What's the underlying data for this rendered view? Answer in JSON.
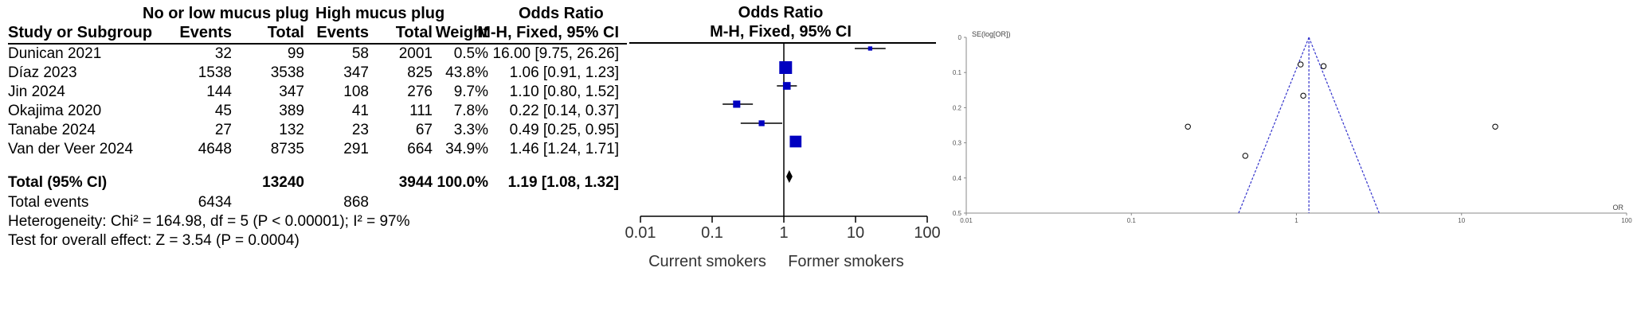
{
  "table": {
    "group1_header": "No or low mucus plug",
    "group2_header": "High mucus plug",
    "or_header": "Odds Ratio",
    "columns": [
      "Study or Subgroup",
      "Events",
      "Total",
      "Events",
      "Total",
      "Weight",
      "M-H, Fixed, 95% CI"
    ],
    "rows": [
      {
        "study": "Dunican 2021",
        "e1": "32",
        "t1": "99",
        "e2": "58",
        "t2": "2001",
        "weight": "0.5%",
        "ci": "16.00 [9.75, 26.26]"
      },
      {
        "study": "Díaz 2023",
        "e1": "1538",
        "t1": "3538",
        "e2": "347",
        "t2": "825",
        "weight": "43.8%",
        "ci": "1.06 [0.91, 1.23]"
      },
      {
        "study": "Jin 2024",
        "e1": "144",
        "t1": "347",
        "e2": "108",
        "t2": "276",
        "weight": "9.7%",
        "ci": "1.10 [0.80, 1.52]"
      },
      {
        "study": "Okajima 2020",
        "e1": "45",
        "t1": "389",
        "e2": "41",
        "t2": "111",
        "weight": "7.8%",
        "ci": "0.22 [0.14, 0.37]"
      },
      {
        "study": "Tanabe 2024",
        "e1": "27",
        "t1": "132",
        "e2": "23",
        "t2": "67",
        "weight": "3.3%",
        "ci": "0.49 [0.25, 0.95]"
      },
      {
        "study": "Van der Veer 2024",
        "e1": "4648",
        "t1": "8735",
        "e2": "291",
        "t2": "664",
        "weight": "34.9%",
        "ci": "1.46 [1.24, 1.71]"
      }
    ],
    "total": {
      "label": "Total (95% CI)",
      "t1": "13240",
      "t2": "3944",
      "weight": "100.0%",
      "ci": "1.19 [1.08, 1.32]"
    },
    "events": {
      "label": "Total events",
      "e1": "6434",
      "e2": "868"
    },
    "heterogeneity": "Heterogeneity: Chi² = 164.98, df = 5 (P < 0.00001); I² = 97%",
    "overall": "Test for overall effect: Z = 3.54 (P = 0.0004)"
  },
  "chart_data": [
    {
      "type": "forest",
      "title": "Odds Ratio",
      "subtitle": "M-H, Fixed, 95% CI",
      "scale": "log",
      "xlim": [
        0.01,
        100
      ],
      "ticks": [
        0.01,
        0.1,
        1,
        10,
        100
      ],
      "tick_labels": [
        "0.01",
        "0.1",
        "1",
        "10",
        "100"
      ],
      "favours_left": "Current smokers",
      "favours_right": "Former smokers",
      "marker_color": "#0000c0",
      "studies": [
        {
          "name": "Dunican 2021",
          "or": 16.0,
          "lo": 9.75,
          "hi": 26.26,
          "weight": 0.5
        },
        {
          "name": "Díaz 2023",
          "or": 1.06,
          "lo": 0.91,
          "hi": 1.23,
          "weight": 43.8
        },
        {
          "name": "Jin 2024",
          "or": 1.1,
          "lo": 0.8,
          "hi": 1.52,
          "weight": 9.7
        },
        {
          "name": "Okajima 2020",
          "or": 0.22,
          "lo": 0.14,
          "hi": 0.37,
          "weight": 7.8
        },
        {
          "name": "Tanabe 2024",
          "or": 0.49,
          "lo": 0.25,
          "hi": 0.95,
          "weight": 3.3
        },
        {
          "name": "Van der Veer 2024",
          "or": 1.46,
          "lo": 1.24,
          "hi": 1.71,
          "weight": 34.9
        }
      ],
      "pooled": {
        "or": 1.19,
        "lo": 1.08,
        "hi": 1.32
      }
    },
    {
      "type": "scatter",
      "subtype": "funnel",
      "xlabel": "OR",
      "ylabel": "SE(log[OR])",
      "x_scale": "log",
      "xlim": [
        0.01,
        100
      ],
      "x_ticks": [
        0.01,
        0.1,
        1,
        10,
        100
      ],
      "x_tick_labels": [
        "0.01",
        "0.1",
        "1",
        "10",
        "100"
      ],
      "ylim": [
        0,
        0.5
      ],
      "y_ticks": [
        0,
        0.1,
        0.2,
        0.3,
        0.4,
        0.5
      ],
      "y_tick_labels": [
        "0",
        "0.1",
        "0.2",
        "0.3",
        "0.4",
        "0.5"
      ],
      "y_inverted": true,
      "pooled_or": 1.19,
      "line_color": "#3333cc",
      "points": [
        {
          "x": 1.06,
          "y": 0.077
        },
        {
          "x": 1.46,
          "y": 0.082
        },
        {
          "x": 1.1,
          "y": 0.166
        },
        {
          "x": 0.22,
          "y": 0.254
        },
        {
          "x": 16.0,
          "y": 0.254
        },
        {
          "x": 0.49,
          "y": 0.337
        }
      ]
    }
  ]
}
